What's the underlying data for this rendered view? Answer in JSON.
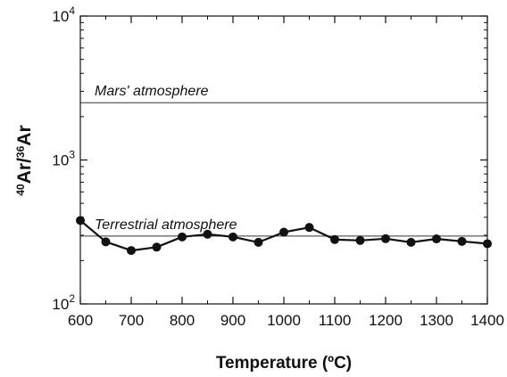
{
  "chart_data": {
    "type": "line",
    "xlabel": "Temperature (ºC)",
    "ylabel": {
      "sup1": "40",
      "main1": "Ar/",
      "sup2": "36",
      "main2": "Ar"
    },
    "xlim": [
      600,
      1400
    ],
    "ylim": [
      100,
      10000
    ],
    "yscale": "log",
    "x_ticks": [
      600,
      700,
      800,
      900,
      1000,
      1100,
      1200,
      1300,
      1400
    ],
    "y_ticks": [
      {
        "base": "10",
        "exp": "2",
        "value": 100
      },
      {
        "base": "10",
        "exp": "3",
        "value": 1000
      },
      {
        "base": "10",
        "exp": "4",
        "value": 10000
      }
    ],
    "reference_lines": [
      {
        "label": "Mars' atmosphere",
        "value": 2500
      },
      {
        "label": "Terrestrial atmosphere",
        "value": 296
      }
    ],
    "series": [
      {
        "x": [
          600,
          650,
          700,
          750,
          800,
          850,
          900,
          950,
          1000,
          1050,
          1100,
          1150,
          1200,
          1250,
          1300,
          1350,
          1400
        ],
        "y": [
          380,
          270,
          235,
          248,
          292,
          305,
          292,
          268,
          315,
          340,
          280,
          276,
          284,
          268,
          283,
          272,
          262
        ]
      }
    ]
  }
}
